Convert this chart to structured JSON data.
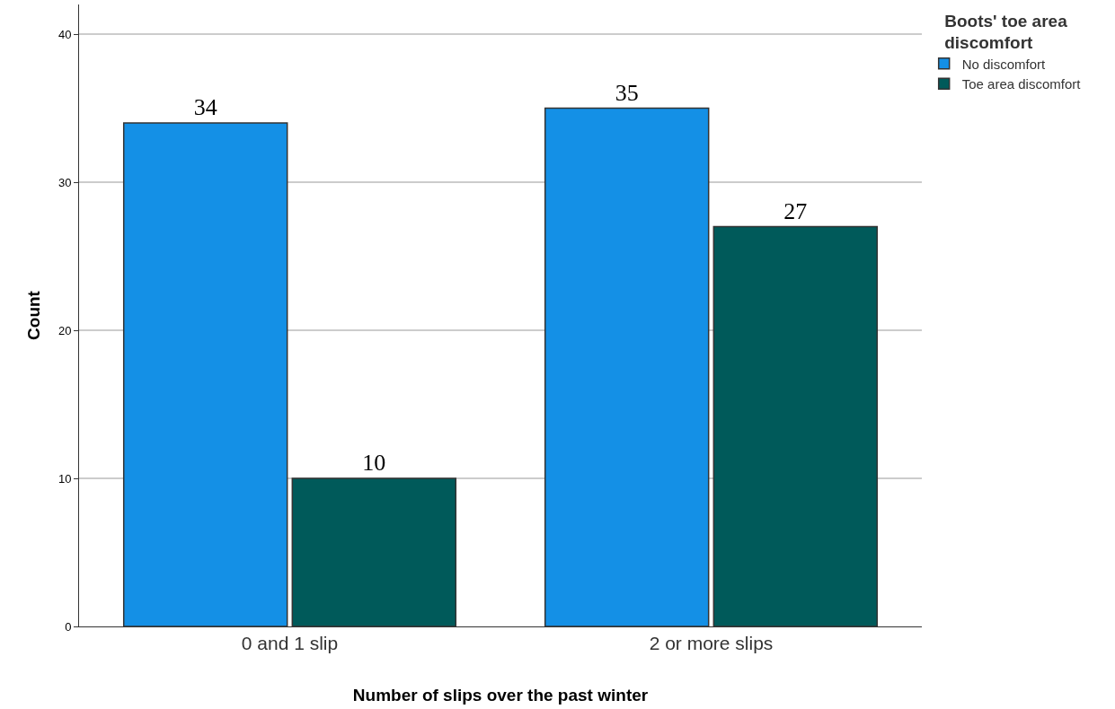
{
  "chart_data": {
    "type": "bar",
    "xlabel": "Number of slips over the past winter",
    "ylabel": "Count",
    "legend_title": "Boots' toe area discomfort",
    "categories": [
      "0 and 1 slip",
      "2 or more slips"
    ],
    "series": [
      {
        "name": "No discomfort",
        "color": "#1490e6",
        "values": [
          34,
          35
        ]
      },
      {
        "name": "Toe area discomfort",
        "color": "#005a5a",
        "values": [
          10,
          27
        ]
      }
    ],
    "ylim": [
      0,
      42
    ],
    "yticks": [
      0,
      10,
      20,
      30,
      40
    ],
    "grid": "y",
    "legend": "top right",
    "data_labels": true
  }
}
